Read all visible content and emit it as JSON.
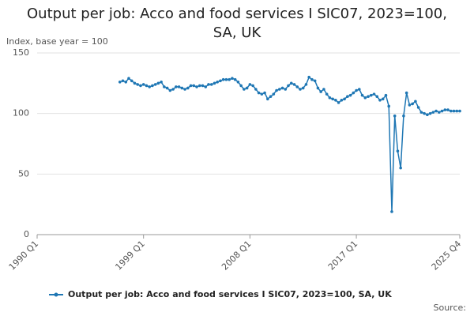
{
  "chart_data": {
    "type": "line",
    "title": "Output per job: Acco and food services I SIC07, 2023=100, SA, UK",
    "y_label": "Index, base year = 100",
    "source": "Source:",
    "categories": [
      "1990 Q1",
      null,
      null,
      null,
      null,
      null,
      null,
      null,
      null,
      null,
      null,
      null,
      null,
      null,
      null,
      null,
      null,
      null,
      null,
      null,
      null,
      null,
      null,
      null,
      null,
      null,
      null,
      null,
      null,
      null,
      null,
      null,
      null,
      null,
      null,
      null,
      "1999 Q1",
      null,
      null,
      null,
      null,
      null,
      null,
      null,
      null,
      null,
      null,
      null,
      null,
      null,
      null,
      null,
      null,
      null,
      null,
      null,
      null,
      null,
      null,
      null,
      null,
      null,
      null,
      null,
      null,
      null,
      null,
      null,
      null,
      null,
      null,
      null,
      "2008 Q1",
      null,
      null,
      null,
      null,
      null,
      null,
      null,
      null,
      null,
      null,
      null,
      null,
      null,
      null,
      null,
      null,
      null,
      null,
      null,
      null,
      null,
      null,
      null,
      null,
      null,
      null,
      null,
      null,
      null,
      null,
      null,
      null,
      null,
      null,
      null,
      "2017 Q1",
      null,
      null,
      null,
      null,
      null,
      null,
      null,
      null,
      null,
      null,
      null,
      null,
      null,
      null,
      null,
      null,
      null,
      null,
      null,
      null,
      null,
      null,
      null,
      null,
      null,
      null,
      null,
      null,
      null,
      null,
      null,
      null,
      null,
      null,
      "2025 Q4"
    ],
    "series": [
      {
        "name": "Output per job: Acco and food services I SIC07, 2023=100, SA, UK",
        "color": "#1f77b4",
        "values": [
          null,
          null,
          null,
          null,
          null,
          null,
          null,
          null,
          null,
          null,
          null,
          null,
          null,
          null,
          null,
          null,
          null,
          null,
          null,
          null,
          null,
          null,
          null,
          null,
          null,
          null,
          null,
          null,
          126,
          127,
          126,
          129,
          127,
          125,
          124,
          123,
          124,
          123,
          122,
          123,
          124,
          125,
          126,
          122,
          121,
          119,
          120,
          122,
          122,
          121,
          120,
          121,
          123,
          123,
          122,
          123,
          123,
          122,
          124,
          124,
          125,
          126,
          127,
          128,
          128,
          128,
          129,
          128,
          126,
          123,
          120,
          121,
          124,
          123,
          120,
          117,
          116,
          117,
          112,
          114,
          116,
          119,
          120,
          121,
          120,
          123,
          125,
          124,
          122,
          120,
          121,
          124,
          130,
          128,
          127,
          121,
          118,
          120,
          116,
          113,
          112,
          111,
          109,
          111,
          112,
          114,
          115,
          117,
          119,
          120,
          115,
          113,
          114,
          115,
          116,
          114,
          111,
          112,
          115,
          106,
          19,
          98,
          69,
          55,
          98,
          117,
          107,
          108,
          110,
          105,
          101,
          100,
          99,
          100,
          101,
          102,
          101,
          102,
          103,
          103,
          102,
          102,
          102,
          102
        ]
      }
    ],
    "ylim": [
      0,
      150
    ],
    "yticks": [
      0,
      50,
      100,
      150
    ],
    "grid": true
  }
}
